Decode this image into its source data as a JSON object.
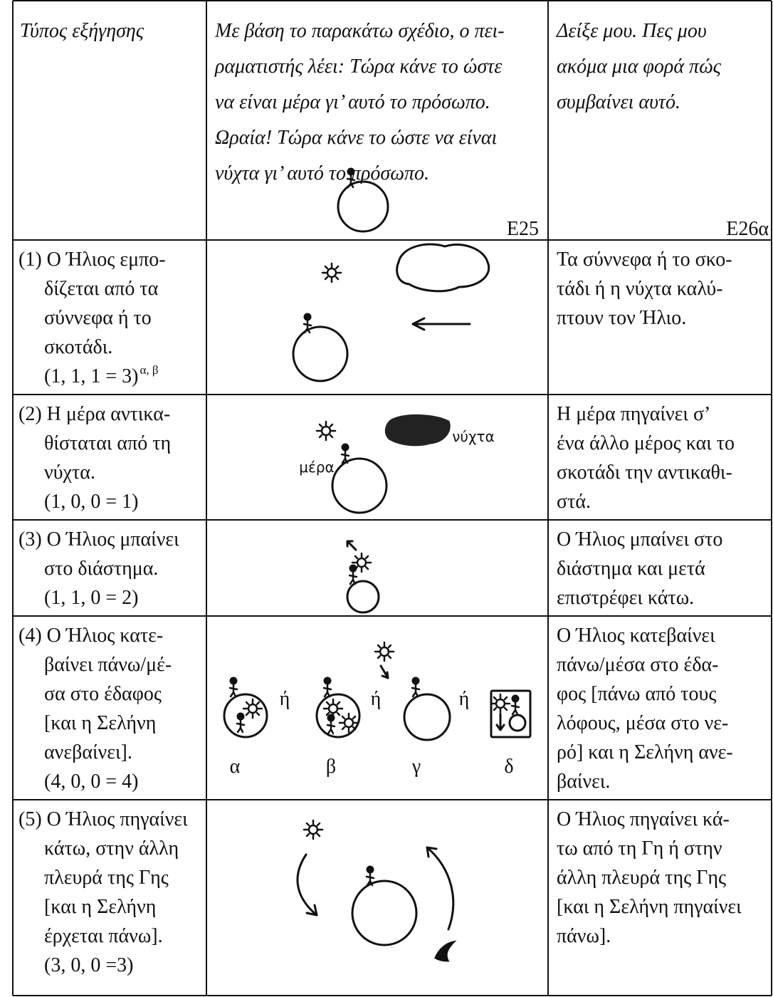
{
  "header": {
    "col1": "Τύπος εξήγησης",
    "col2": [
      "Με βάση το παρακάτω σχέδιο, ο πει-",
      "ραματιστής λέει: Τώρα κάνε το ώστε",
      "να είναι μέρα γι’ αυτό το πρόσωπο.",
      "Ωραία! Τώρα κάνε το ώστε να είναι",
      "νύχτα γι’ αυτό το πρόσωπο."
    ],
    "col2_code": "E25",
    "col3": [
      "Δείξε μου. Πες μου",
      "ακόμα μια φορά πώς",
      "συμβαίνει αυτό."
    ],
    "col3_code": "E26α"
  },
  "rows": [
    {
      "label": [
        "(1) Ο Ήλιος εμπο-",
        "δίζεται από τα",
        "σύννεφα ή το",
        "σκοτάδι."
      ],
      "score": "(1, 1, 1 = 3)",
      "score_note": "α, β",
      "description": [
        "Τα σύννεφα ή το σκο-",
        "τάδι ή η νύχτα καλύ-",
        "πτουν τον Ήλιο."
      ]
    },
    {
      "label": [
        "(2) Η μέρα αντικα-",
        "θίσταται από τη",
        "νύχτα."
      ],
      "score": "(1, 0, 0 = 1)",
      "description": [
        "Η μέρα πηγαίνει σ’",
        "ένα άλλο μέρος και το",
        "σκοτάδι την αντικαθι-",
        "στά."
      ],
      "figure_labels": [
        "μέρα",
        "νύχτα"
      ]
    },
    {
      "label": [
        "(3) Ο Ήλιος μπαίνει",
        "στο διάστημα."
      ],
      "score": "(1, 1, 0 = 2)",
      "description": [
        "Ο Ήλιος μπαίνει στο",
        "διάστημα και μετά",
        "επιστρέφει κάτω."
      ]
    },
    {
      "label": [
        "(4) Ο Ήλιος κατε-",
        "βαίνει πάνω/μέ-",
        "σα στο έδαφος",
        "[και η Σελήνη",
        "ανεβαίνει]."
      ],
      "score": "(4, 0, 0 = 4)",
      "description": [
        "Ο Ήλιος κατεβαίνει",
        "πάνω/μέσα στο έδα-",
        "φος [πάνω από τους",
        "λόφους, μέσα στο νε-",
        "ρό] και η Σελήνη ανε-",
        "βαίνει."
      ],
      "figure_labels": [
        "α",
        "β",
        "γ",
        "δ"
      ],
      "connectors": [
        "ή",
        "ή",
        "ή"
      ]
    },
    {
      "label": [
        "(5) Ο Ήλιος πηγαίνει",
        "κάτω, στην άλλη",
        "πλευρά της Γης",
        "[και η Σελήνη",
        "έρχεται πάνω]."
      ],
      "score": "(3, 0, 0 =3)",
      "description": [
        "Ο Ήλιος πηγαίνει κά-",
        "τω από τη Γη ή στην",
        "άλλη πλευρά της Γης",
        "[και η Σελήνη πηγαίνει",
        "πάνω]."
      ]
    }
  ]
}
